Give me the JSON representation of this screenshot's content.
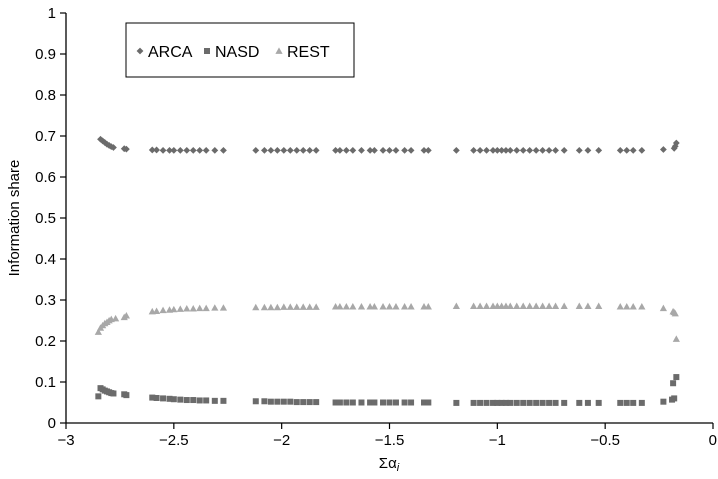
{
  "chart_data": {
    "type": "scatter",
    "title": "",
    "xlabel": "Σα",
    "xlabel_subscript": "i",
    "ylabel": "Information share",
    "xlim": [
      -3,
      0
    ],
    "ylim": [
      0,
      1
    ],
    "x_ticks": [
      -3,
      -2.5,
      -2,
      -1.5,
      -1,
      -0.5,
      0
    ],
    "x_tick_labels": [
      "−3",
      "−2.5",
      "−2",
      "−1.5",
      "−1",
      "−0.5",
      "0"
    ],
    "y_ticks": [
      0,
      0.1,
      0.2,
      0.3,
      0.4,
      0.5,
      0.6,
      0.7,
      0.8,
      0.9,
      1
    ],
    "y_tick_labels": [
      "0",
      "0.1",
      "0.2",
      "0.3",
      "0.4",
      "0.5",
      "0.6",
      "0.7",
      "0.8",
      "0.9",
      "1"
    ],
    "grid": false,
    "legend": {
      "placement": "top-left",
      "boxed": true
    },
    "series": [
      {
        "name": "ARCA",
        "marker": "diamond",
        "color": "#6b6b6b",
        "points": [
          [
            -2.84,
            0.692
          ],
          [
            -2.83,
            0.688
          ],
          [
            -2.82,
            0.684
          ],
          [
            -2.81,
            0.68
          ],
          [
            -2.8,
            0.677
          ],
          [
            -2.79,
            0.674
          ],
          [
            -2.78,
            0.672
          ],
          [
            -2.73,
            0.669
          ],
          [
            -2.72,
            0.668
          ],
          [
            -2.6,
            0.666
          ],
          [
            -2.58,
            0.666
          ],
          [
            -2.55,
            0.665
          ],
          [
            -2.52,
            0.665
          ],
          [
            -2.5,
            0.665
          ],
          [
            -2.47,
            0.665
          ],
          [
            -2.44,
            0.665
          ],
          [
            -2.41,
            0.665
          ],
          [
            -2.38,
            0.665
          ],
          [
            -2.35,
            0.665
          ],
          [
            -2.31,
            0.665
          ],
          [
            -2.27,
            0.665
          ],
          [
            -2.12,
            0.665
          ],
          [
            -2.08,
            0.665
          ],
          [
            -2.05,
            0.665
          ],
          [
            -2.02,
            0.665
          ],
          [
            -1.99,
            0.665
          ],
          [
            -1.96,
            0.665
          ],
          [
            -1.93,
            0.665
          ],
          [
            -1.9,
            0.665
          ],
          [
            -1.87,
            0.665
          ],
          [
            -1.84,
            0.665
          ],
          [
            -1.75,
            0.665
          ],
          [
            -1.73,
            0.665
          ],
          [
            -1.7,
            0.665
          ],
          [
            -1.67,
            0.665
          ],
          [
            -1.63,
            0.665
          ],
          [
            -1.59,
            0.665
          ],
          [
            -1.57,
            0.665
          ],
          [
            -1.53,
            0.665
          ],
          [
            -1.5,
            0.665
          ],
          [
            -1.47,
            0.665
          ],
          [
            -1.43,
            0.665
          ],
          [
            -1.4,
            0.665
          ],
          [
            -1.34,
            0.665
          ],
          [
            -1.32,
            0.665
          ],
          [
            -1.19,
            0.665
          ],
          [
            -1.11,
            0.665
          ],
          [
            -1.08,
            0.665
          ],
          [
            -1.05,
            0.665
          ],
          [
            -1.02,
            0.665
          ],
          [
            -1.0,
            0.665
          ],
          [
            -0.98,
            0.665
          ],
          [
            -0.96,
            0.665
          ],
          [
            -0.94,
            0.665
          ],
          [
            -0.91,
            0.665
          ],
          [
            -0.88,
            0.665
          ],
          [
            -0.85,
            0.665
          ],
          [
            -0.82,
            0.665
          ],
          [
            -0.79,
            0.665
          ],
          [
            -0.76,
            0.665
          ],
          [
            -0.73,
            0.665
          ],
          [
            -0.69,
            0.665
          ],
          [
            -0.62,
            0.665
          ],
          [
            -0.58,
            0.665
          ],
          [
            -0.53,
            0.665
          ],
          [
            -0.43,
            0.665
          ],
          [
            -0.4,
            0.665
          ],
          [
            -0.37,
            0.665
          ],
          [
            -0.33,
            0.665
          ],
          [
            -0.23,
            0.667
          ],
          [
            -0.18,
            0.67
          ],
          [
            -0.175,
            0.675
          ],
          [
            -0.17,
            0.683
          ]
        ]
      },
      {
        "name": "NASD",
        "marker": "square",
        "color": "#6b6b6b",
        "points": [
          [
            -2.85,
            0.065
          ],
          [
            -2.84,
            0.085
          ],
          [
            -2.83,
            0.082
          ],
          [
            -2.82,
            0.079
          ],
          [
            -2.81,
            0.077
          ],
          [
            -2.8,
            0.075
          ],
          [
            -2.79,
            0.073
          ],
          [
            -2.78,
            0.072
          ],
          [
            -2.73,
            0.07
          ],
          [
            -2.72,
            0.068
          ],
          [
            -2.6,
            0.062
          ],
          [
            -2.58,
            0.061
          ],
          [
            -2.55,
            0.06
          ],
          [
            -2.52,
            0.059
          ],
          [
            -2.5,
            0.058
          ],
          [
            -2.47,
            0.057
          ],
          [
            -2.44,
            0.056
          ],
          [
            -2.41,
            0.056
          ],
          [
            -2.38,
            0.055
          ],
          [
            -2.35,
            0.055
          ],
          [
            -2.31,
            0.054
          ],
          [
            -2.27,
            0.054
          ],
          [
            -2.12,
            0.053
          ],
          [
            -2.08,
            0.053
          ],
          [
            -2.05,
            0.052
          ],
          [
            -2.02,
            0.052
          ],
          [
            -1.99,
            0.052
          ],
          [
            -1.96,
            0.052
          ],
          [
            -1.93,
            0.051
          ],
          [
            -1.9,
            0.051
          ],
          [
            -1.87,
            0.051
          ],
          [
            -1.84,
            0.051
          ],
          [
            -1.75,
            0.05
          ],
          [
            -1.73,
            0.05
          ],
          [
            -1.7,
            0.05
          ],
          [
            -1.67,
            0.05
          ],
          [
            -1.63,
            0.05
          ],
          [
            -1.59,
            0.05
          ],
          [
            -1.57,
            0.05
          ],
          [
            -1.53,
            0.05
          ],
          [
            -1.5,
            0.05
          ],
          [
            -1.47,
            0.05
          ],
          [
            -1.43,
            0.05
          ],
          [
            -1.4,
            0.05
          ],
          [
            -1.34,
            0.05
          ],
          [
            -1.32,
            0.05
          ],
          [
            -1.19,
            0.049
          ],
          [
            -1.11,
            0.049
          ],
          [
            -1.08,
            0.049
          ],
          [
            -1.05,
            0.049
          ],
          [
            -1.02,
            0.049
          ],
          [
            -1.0,
            0.049
          ],
          [
            -0.98,
            0.049
          ],
          [
            -0.96,
            0.049
          ],
          [
            -0.94,
            0.049
          ],
          [
            -0.91,
            0.049
          ],
          [
            -0.88,
            0.049
          ],
          [
            -0.85,
            0.049
          ],
          [
            -0.82,
            0.049
          ],
          [
            -0.79,
            0.049
          ],
          [
            -0.76,
            0.049
          ],
          [
            -0.73,
            0.049
          ],
          [
            -0.69,
            0.049
          ],
          [
            -0.62,
            0.049
          ],
          [
            -0.58,
            0.049
          ],
          [
            -0.53,
            0.049
          ],
          [
            -0.43,
            0.049
          ],
          [
            -0.4,
            0.049
          ],
          [
            -0.37,
            0.049
          ],
          [
            -0.33,
            0.049
          ],
          [
            -0.23,
            0.052
          ],
          [
            -0.19,
            0.057
          ],
          [
            -0.18,
            0.06
          ],
          [
            -0.185,
            0.097
          ],
          [
            -0.17,
            0.112
          ]
        ]
      },
      {
        "name": "REST",
        "marker": "triangle",
        "color": "#a8a8a8",
        "points": [
          [
            -2.85,
            0.222
          ],
          [
            -2.84,
            0.232
          ],
          [
            -2.83,
            0.238
          ],
          [
            -2.82,
            0.243
          ],
          [
            -2.81,
            0.246
          ],
          [
            -2.8,
            0.25
          ],
          [
            -2.79,
            0.253
          ],
          [
            -2.77,
            0.255
          ],
          [
            -2.73,
            0.258
          ],
          [
            -2.72,
            0.262
          ],
          [
            -2.6,
            0.272
          ],
          [
            -2.58,
            0.273
          ],
          [
            -2.55,
            0.275
          ],
          [
            -2.52,
            0.276
          ],
          [
            -2.5,
            0.277
          ],
          [
            -2.47,
            0.278
          ],
          [
            -2.44,
            0.279
          ],
          [
            -2.41,
            0.279
          ],
          [
            -2.38,
            0.28
          ],
          [
            -2.35,
            0.28
          ],
          [
            -2.31,
            0.281
          ],
          [
            -2.27,
            0.281
          ],
          [
            -2.12,
            0.282
          ],
          [
            -2.08,
            0.282
          ],
          [
            -2.05,
            0.282
          ],
          [
            -2.02,
            0.282
          ],
          [
            -1.99,
            0.283
          ],
          [
            -1.96,
            0.283
          ],
          [
            -1.93,
            0.283
          ],
          [
            -1.9,
            0.283
          ],
          [
            -1.87,
            0.283
          ],
          [
            -1.84,
            0.283
          ],
          [
            -1.75,
            0.284
          ],
          [
            -1.73,
            0.284
          ],
          [
            -1.7,
            0.284
          ],
          [
            -1.67,
            0.284
          ],
          [
            -1.63,
            0.284
          ],
          [
            -1.59,
            0.284
          ],
          [
            -1.57,
            0.284
          ],
          [
            -1.53,
            0.284
          ],
          [
            -1.5,
            0.284
          ],
          [
            -1.47,
            0.284
          ],
          [
            -1.43,
            0.284
          ],
          [
            -1.4,
            0.284
          ],
          [
            -1.34,
            0.284
          ],
          [
            -1.32,
            0.284
          ],
          [
            -1.19,
            0.285
          ],
          [
            -1.11,
            0.285
          ],
          [
            -1.08,
            0.285
          ],
          [
            -1.05,
            0.285
          ],
          [
            -1.02,
            0.285
          ],
          [
            -1.0,
            0.285
          ],
          [
            -0.98,
            0.285
          ],
          [
            -0.96,
            0.285
          ],
          [
            -0.94,
            0.285
          ],
          [
            -0.91,
            0.285
          ],
          [
            -0.88,
            0.285
          ],
          [
            -0.85,
            0.285
          ],
          [
            -0.82,
            0.285
          ],
          [
            -0.79,
            0.285
          ],
          [
            -0.76,
            0.285
          ],
          [
            -0.73,
            0.285
          ],
          [
            -0.69,
            0.285
          ],
          [
            -0.62,
            0.285
          ],
          [
            -0.58,
            0.285
          ],
          [
            -0.53,
            0.285
          ],
          [
            -0.43,
            0.284
          ],
          [
            -0.4,
            0.284
          ],
          [
            -0.37,
            0.284
          ],
          [
            -0.33,
            0.284
          ],
          [
            -0.23,
            0.28
          ],
          [
            -0.185,
            0.272
          ],
          [
            -0.18,
            0.27
          ],
          [
            -0.175,
            0.267
          ],
          [
            -0.17,
            0.205
          ]
        ]
      }
    ]
  }
}
